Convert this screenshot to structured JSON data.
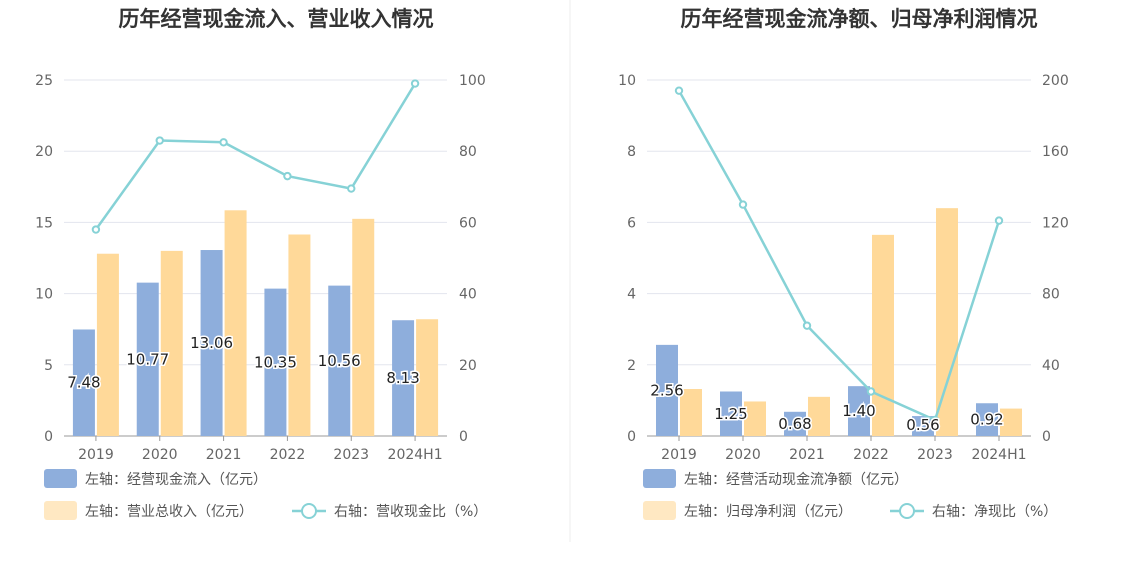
{
  "colors": {
    "bar_primary": "#8eaedc",
    "bar_secondary": "#ffd999",
    "line": "#86d2d6",
    "grid": "#e3e5ee",
    "axis": "#999999",
    "divider": "#eeeeee"
  },
  "chart_data": [
    {
      "type": "bar",
      "title": "历年经营现金流入、营业收入情况",
      "categories": [
        "2019",
        "2020",
        "2021",
        "2022",
        "2023",
        "2024H1"
      ],
      "left_ylim": [
        0,
        25
      ],
      "left_ticks": [
        "0",
        "5",
        "10",
        "15",
        "20",
        "25"
      ],
      "right_ylim": [
        0,
        100
      ],
      "right_ticks": [
        "0",
        "20",
        "40",
        "60",
        "80",
        "100"
      ],
      "grid": true,
      "legend_position": "bottom",
      "series": [
        {
          "name": "左轴：经营现金流入（亿元）",
          "kind": "bar",
          "axis": "left",
          "values": [
            7.48,
            10.77,
            13.06,
            10.35,
            10.56,
            8.13
          ],
          "labels": [
            "7.48",
            "10.77",
            "13.06",
            "10.35",
            "10.56",
            "8.13"
          ]
        },
        {
          "name": "左轴：营业总收入（亿元）",
          "kind": "bar",
          "axis": "left",
          "values": [
            12.8,
            13.0,
            15.85,
            14.15,
            15.25,
            8.2
          ]
        },
        {
          "name": "右轴：营收现金比（%）",
          "kind": "line",
          "axis": "right",
          "values": [
            58.0,
            83.0,
            82.5,
            73.0,
            69.5,
            99.0
          ]
        }
      ]
    },
    {
      "type": "bar",
      "title": "历年经营现金流净额、归母净利润情况",
      "categories": [
        "2019",
        "2020",
        "2021",
        "2022",
        "2023",
        "2024H1"
      ],
      "left_ylim": [
        0,
        10
      ],
      "left_ticks": [
        "0",
        "2",
        "4",
        "6",
        "8",
        "10"
      ],
      "right_ylim": [
        0,
        200
      ],
      "right_ticks": [
        "0",
        "40",
        "80",
        "120",
        "160",
        "200"
      ],
      "grid": true,
      "legend_position": "bottom",
      "series": [
        {
          "name": "左轴：经营活动现金流净额（亿元）",
          "kind": "bar",
          "axis": "left",
          "values": [
            2.56,
            1.25,
            0.68,
            1.4,
            0.56,
            0.92
          ],
          "labels": [
            "2.56",
            "1.25",
            "0.68",
            "1.40",
            "0.56",
            "0.92"
          ]
        },
        {
          "name": "左轴：归母净利润（亿元）",
          "kind": "bar",
          "axis": "left",
          "values": [
            1.32,
            0.97,
            1.1,
            5.65,
            6.4,
            0.77
          ]
        },
        {
          "name": "右轴：净现比（%）",
          "kind": "line",
          "axis": "right",
          "values": [
            194,
            130,
            62,
            25,
            9,
            121
          ]
        }
      ]
    }
  ]
}
